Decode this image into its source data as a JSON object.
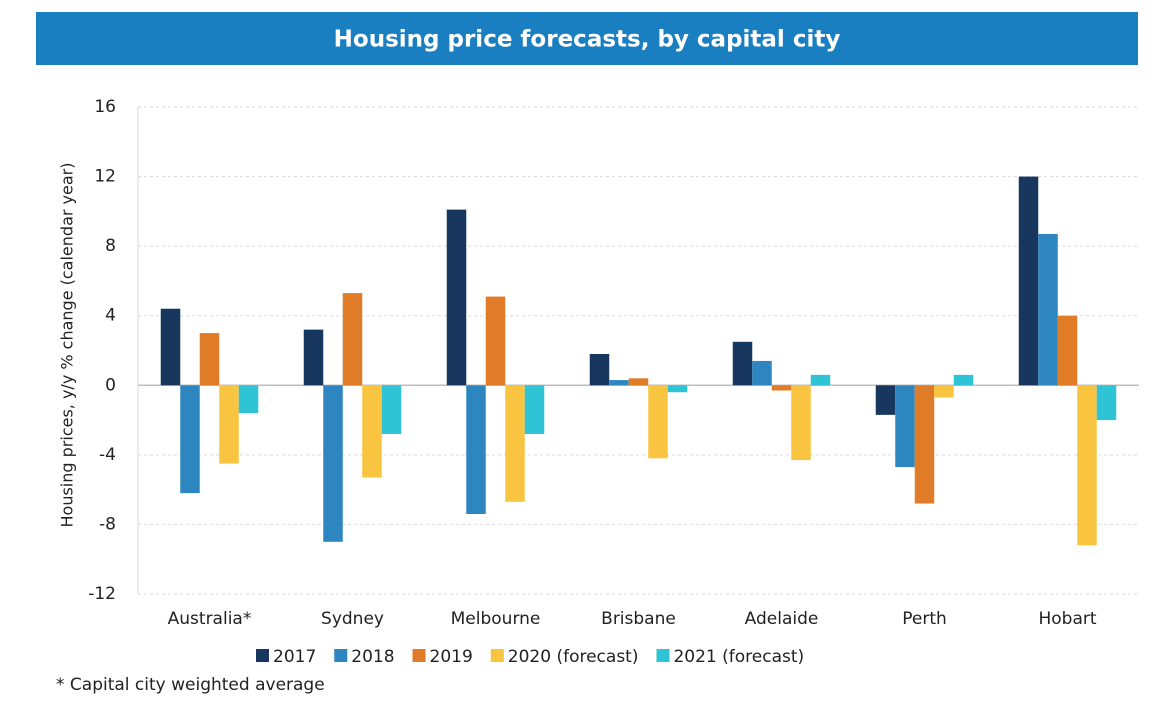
{
  "chart_data": {
    "type": "bar",
    "title": "Housing price forecasts, by capital city",
    "y_label": "Housing prices, y/y % change (calendar year)",
    "categories": [
      "Australia*",
      "Sydney",
      "Melbourne",
      "Brisbane",
      "Adelaide",
      "Perth",
      "Hobart"
    ],
    "series": [
      {
        "name": "2017",
        "color": "#17375e",
        "values": [
          4.4,
          3.2,
          10.1,
          1.8,
          2.5,
          -1.7,
          12.0
        ]
      },
      {
        "name": "2018",
        "color": "#2e86c1",
        "values": [
          -6.2,
          -9.0,
          -7.4,
          0.3,
          1.4,
          -4.7,
          8.7
        ]
      },
      {
        "name": "2019",
        "color": "#e07b28",
        "values": [
          3.0,
          5.3,
          5.1,
          0.4,
          -0.3,
          -6.8,
          4.0
        ]
      },
      {
        "name": "2020 (forecast)",
        "color": "#f9c440",
        "values": [
          -4.5,
          -5.3,
          -6.7,
          -4.2,
          -4.3,
          -0.7,
          -9.2
        ]
      },
      {
        "name": "2021 (forecast)",
        "color": "#2ec4d6",
        "values": [
          -1.6,
          -2.8,
          -2.8,
          -0.4,
          0.6,
          0.6,
          -2.0
        ]
      }
    ],
    "ylim": [
      -12,
      16
    ],
    "yticks": [
      -12,
      -8,
      -4,
      0,
      4,
      8,
      12,
      16
    ],
    "grid": true,
    "legend": "bottom",
    "footnote": "* Capital city weighted average"
  }
}
